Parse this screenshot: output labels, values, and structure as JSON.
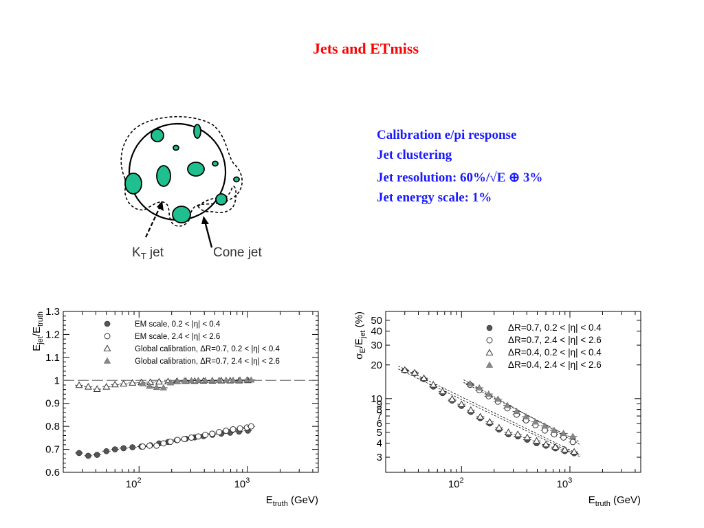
{
  "slide": {
    "title": "Jets and ETmiss",
    "bullets": [
      "Calibration e/pi response",
      "Jet clustering",
      "Jet resolution: 60%/√E ⊕ 3%",
      "Jet energy scale: 1%"
    ]
  },
  "diagram": {
    "kt_label_main": "K",
    "kt_label_sub": "T",
    "kt_label_rest": " jet",
    "cone_label": "Cone jet",
    "colors": {
      "cluster": "#1fbf8f",
      "outline": "#000000"
    }
  },
  "colors": {
    "title": "#ff0000",
    "text": "#1a1aff",
    "marker_filled": "#555555",
    "marker_open": "#333333"
  },
  "chart_data": [
    {
      "type": "scatter",
      "x_scale": "log",
      "xlim": [
        20,
        4500
      ],
      "ylim": [
        0.6,
        1.3
      ],
      "x_ticks": [
        {
          "value": 100,
          "label": "10",
          "exp": "2"
        },
        {
          "value": 1000,
          "label": "10",
          "exp": "3"
        }
      ],
      "y_ticks": [
        {
          "value": 0.6,
          "label": "0.6"
        },
        {
          "value": 0.7,
          "label": "0.7"
        },
        {
          "value": 0.8,
          "label": "0.8"
        },
        {
          "value": 0.9,
          "label": "0.9"
        },
        {
          "value": 1.0,
          "label": "1"
        },
        {
          "value": 1.1,
          "label": "1.1"
        },
        {
          "value": 1.2,
          "label": "1.2"
        },
        {
          "value": 1.3,
          "label": "1.3"
        }
      ],
      "xlabel": "E",
      "xlabel_sub": "truth",
      "xlabel_unit": " (GeV)",
      "ylabel": "E",
      "ylabel_sub1": "jet",
      "ylabel_mid": "/E",
      "ylabel_sub2": "truth",
      "reference_line": 1.0,
      "legend_position": "top",
      "series": [
        {
          "name": "EM scale, 0.2 < |η| < 0.4",
          "marker": "filled-circle",
          "x": [
            28,
            34,
            41,
            50,
            60,
            72,
            87,
            105,
            127,
            153,
            185,
            223,
            270,
            326,
            393,
            475,
            573,
            692,
            836,
            1009
          ],
          "y": [
            0.684,
            0.672,
            0.676,
            0.692,
            0.7,
            0.705,
            0.709,
            0.712,
            0.718,
            0.726,
            0.732,
            0.74,
            0.746,
            0.752,
            0.757,
            0.763,
            0.768,
            0.772,
            0.777,
            0.781
          ]
        },
        {
          "name": "EM scale, 2.4 < |η| < 2.6",
          "marker": "open-circle",
          "x": [
            108,
            125,
            145,
            168,
            195,
            226,
            262,
            304,
            352,
            408,
            473,
            548,
            635,
            736,
            853,
            989,
            1080
          ],
          "y": [
            0.712,
            0.716,
            0.716,
            0.726,
            0.733,
            0.741,
            0.745,
            0.751,
            0.756,
            0.763,
            0.768,
            0.775,
            0.781,
            0.787,
            0.791,
            0.795,
            0.8
          ]
        },
        {
          "name": "Global calibration, ΔR=0.7, 0.2 < |η| < 0.4",
          "marker": "open-triangle",
          "x": [
            28,
            34,
            41,
            50,
            60,
            72,
            87,
            105,
            127,
            153,
            185,
            223,
            270,
            326,
            393,
            475,
            573,
            692,
            836,
            1009
          ],
          "y": [
            0.979,
            0.972,
            0.962,
            0.972,
            0.982,
            0.985,
            0.989,
            0.991,
            0.992,
            0.994,
            0.995,
            0.996,
            0.997,
            0.997,
            0.998,
            0.998,
            0.999,
            0.999,
            0.999,
            1.0
          ]
        },
        {
          "name": "Global calibration, ΔR=0.7, 2.4 < |η| < 2.6",
          "marker": "filled-triangle",
          "x": [
            108,
            125,
            145,
            168,
            195,
            226,
            262,
            304,
            352,
            408,
            473,
            548,
            635,
            736,
            853,
            989,
            1080
          ],
          "y": [
            0.986,
            0.975,
            0.97,
            0.968,
            0.99,
            0.996,
            0.998,
            0.999,
            1.0,
            1.0,
            1.0,
            1.001,
            1.001,
            1.001,
            1.002,
            1.002,
            1.002
          ]
        }
      ]
    },
    {
      "type": "scatter",
      "x_scale": "log",
      "y_scale": "log",
      "xlim": [
        20,
        4500
      ],
      "ylim": [
        2.2,
        60
      ],
      "x_ticks": [
        {
          "value": 100,
          "label": "10",
          "exp": "2"
        },
        {
          "value": 1000,
          "label": "10",
          "exp": "3"
        }
      ],
      "y_ticks": [
        {
          "value": 3,
          "label": "3"
        },
        {
          "value": 4,
          "label": "4"
        },
        {
          "value": 5,
          "label": "5"
        },
        {
          "value": 6,
          "label": "6"
        },
        {
          "value": 7,
          "label": "7"
        },
        {
          "value": 8,
          "label": "8"
        },
        {
          "value": 9,
          "label": "9"
        },
        {
          "value": 10,
          "label": "10"
        },
        {
          "value": 20,
          "label": "20"
        },
        {
          "value": 30,
          "label": "30"
        },
        {
          "value": 40,
          "label": "40"
        },
        {
          "value": 50,
          "label": "50"
        }
      ],
      "xlabel": "E",
      "xlabel_sub": "truth",
      "xlabel_unit": " (GeV)",
      "ylabel": "σ",
      "ylabel_sub1": "E",
      "ylabel_mid": "/E",
      "ylabel_sub2": "jet",
      "ylabel_unit": " (%)",
      "legend_position": "top-right",
      "series": [
        {
          "name": "ΔR=0.7,  0.2 < |η| < 0.4",
          "marker": "filled-circle",
          "x": [
            30,
            37,
            45,
            55,
            67,
            82,
            100,
            122,
            149,
            182,
            222,
            271,
            331,
            404,
            493,
            602,
            735,
            897,
            1095
          ],
          "y": [
            17.8,
            16.8,
            14.9,
            12.8,
            11.2,
            9.6,
            8.6,
            7.6,
            6.7,
            6.0,
            5.3,
            4.8,
            4.6,
            4.3,
            4.0,
            3.8,
            3.6,
            3.4,
            3.25
          ]
        },
        {
          "name": "ΔR=0.7,  2.4 < |η| < 2.6",
          "marker": "open-circle",
          "x": [
            120,
            146,
            178,
            217,
            265,
            323,
            394,
            481,
            587,
            716,
            873,
            1065
          ],
          "y": [
            13.3,
            11.9,
            10.5,
            9.4,
            8.2,
            7.2,
            6.4,
            5.8,
            5.2,
            4.8,
            4.5,
            4.1
          ]
        },
        {
          "name": "ΔR=0.4,  0.2 < |η| < 0.4",
          "marker": "open-triangle",
          "x": [
            30,
            37,
            45,
            55,
            67,
            82,
            100,
            122,
            149,
            182,
            222,
            271,
            331,
            404,
            493,
            602,
            735,
            897,
            1095
          ],
          "y": [
            18.0,
            17.0,
            15.2,
            13.3,
            11.6,
            9.9,
            8.9,
            7.9,
            6.9,
            6.2,
            5.5,
            5.0,
            4.8,
            4.5,
            4.2,
            3.9,
            3.7,
            3.5,
            3.35
          ]
        },
        {
          "name": "ΔR=0.4,  2.4 < |η| < 2.6",
          "marker": "filled-triangle",
          "x": [
            120,
            146,
            178,
            217,
            265,
            323,
            394,
            481,
            587,
            716,
            873,
            1065
          ],
          "y": [
            13.6,
            12.5,
            11.0,
            9.9,
            8.7,
            7.7,
            6.9,
            6.2,
            5.7,
            5.2,
            4.9,
            4.6
          ]
        }
      ]
    }
  ]
}
